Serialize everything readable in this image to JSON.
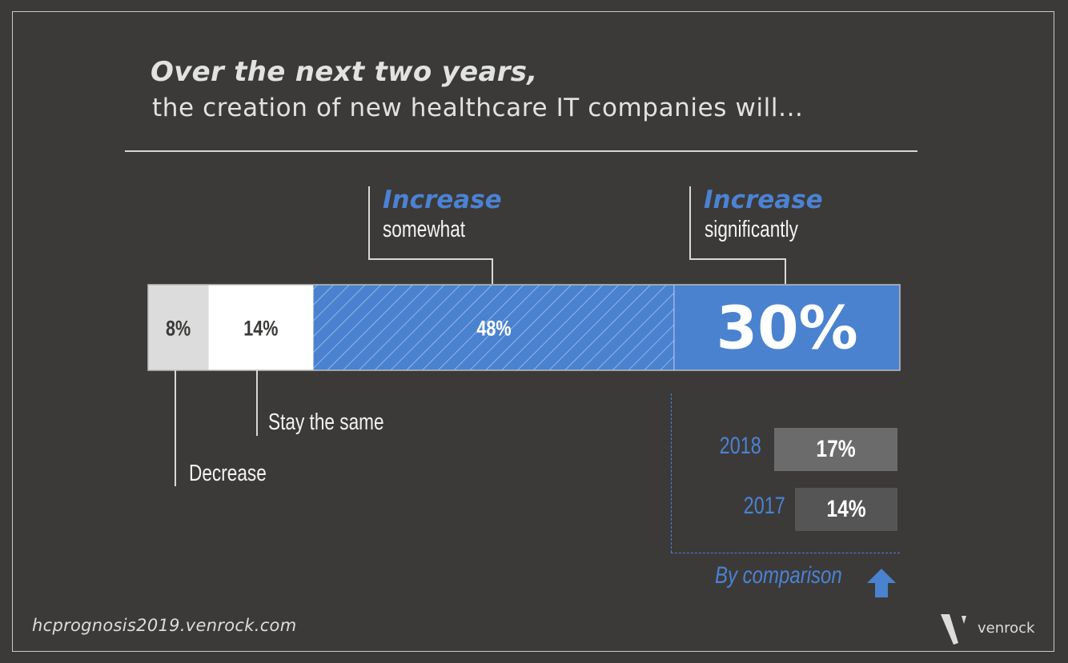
{
  "title": {
    "line1": "Over the next two years,",
    "line2": "the creation of new healthcare IT companies will..."
  },
  "chart_data": {
    "type": "bar",
    "subtype": "stacked-100-horizontal",
    "title": "Over the next two years, the creation of new healthcare IT companies will...",
    "categories": [
      "Decrease",
      "Stay the same",
      "Increase somewhat",
      "Increase significantly"
    ],
    "values": [
      8,
      14,
      48,
      30
    ],
    "labels": [
      "8%",
      "14%",
      "48%",
      "30%"
    ],
    "segment_styles": [
      {
        "fill": "#dcdcdc",
        "pattern": "solid",
        "text_color": "#3b3a38"
      },
      {
        "fill": "#ffffff",
        "pattern": "solid",
        "text_color": "#3b3a38"
      },
      {
        "fill": "#4a82d0",
        "pattern": "diagonal-hatch",
        "text_color": "#ffffff"
      },
      {
        "fill": "#4a82d0",
        "pattern": "solid",
        "text_color": "#ffffff"
      }
    ],
    "callouts": [
      {
        "category": "Increase somewhat",
        "head": "Increase",
        "sub": "somewhat",
        "position": "above"
      },
      {
        "category": "Increase significantly",
        "head": "Increase",
        "sub": "significantly",
        "position": "above"
      },
      {
        "category": "Stay the same",
        "text": "Stay the same",
        "position": "below"
      },
      {
        "category": "Decrease",
        "text": "Decrease",
        "position": "below"
      }
    ],
    "comparison": {
      "label": "By comparison",
      "metric": "Increase significantly",
      "items": [
        {
          "year": "2018",
          "value": 17,
          "label": "17%"
        },
        {
          "year": "2017",
          "value": 14,
          "label": "14%"
        }
      ]
    },
    "xlim": [
      0,
      100
    ],
    "grid": false,
    "legend": "none"
  },
  "colors": {
    "background": "#3b3a38",
    "accent_blue": "#4a82d0",
    "text_light": "#e2e2e2",
    "box_2018": "#6b6b6b",
    "box_2017": "#555555"
  },
  "footer": {
    "url": "hcprognosis2019.venrock.com",
    "brand": "venrock",
    "logo_icon": "venrock-v-logo-icon"
  }
}
